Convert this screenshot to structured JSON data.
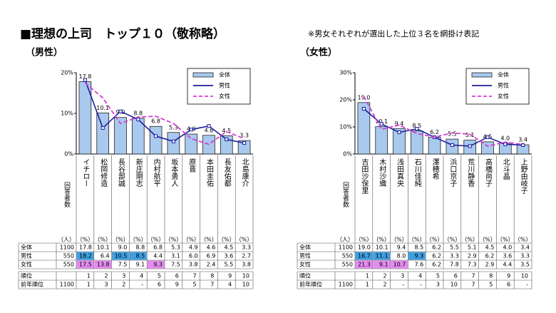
{
  "header": {
    "title": "■理想の上司　トップ１０（敬称略）",
    "note": "※男女それぞれが選出した上位３名を網掛け表記"
  },
  "chart_data": [
    {
      "type": "bar",
      "subtitle": "（男性）",
      "categories": [
        "イチロー",
        "松岡修造",
        "長谷部誠",
        "新庄剛志",
        "内村航平",
        "坂本勇人",
        "原晋",
        "本田圭佑",
        "長友佑都",
        "北島康介"
      ],
      "ylim": [
        0,
        20
      ],
      "yticks": [
        {
          "value": 0,
          "label": "0%"
        },
        {
          "value": 10,
          "label": "10%"
        },
        {
          "value": 20,
          "label": "20%"
        }
      ],
      "series": [
        {
          "name": "全体",
          "type": "bar",
          "color": "#a9c9ee",
          "values": [
            17.8,
            10.1,
            9,
            8.8,
            6.8,
            5.3,
            4.9,
            4.6,
            4.5,
            3.3
          ],
          "value_labels": [
            "17.8",
            "10.1",
            "9.0",
            "8.8",
            "6.8",
            "5.3",
            "4.9",
            "4.6",
            "4.5",
            "3.3"
          ]
        },
        {
          "name": "男性",
          "type": "line",
          "color": "#1c1c9c",
          "highlight": "#3f9fe0",
          "values": [
            18.2,
            6.4,
            10.5,
            8.5,
            4.4,
            3.1,
            6,
            6.9,
            3.6,
            2.7
          ],
          "value_labels": [
            "18.2",
            "6.4",
            "10.5",
            "8.5",
            "4.4",
            "3.1",
            "6.0",
            "6.9",
            "3.6",
            "2.7"
          ]
        },
        {
          "name": "女性",
          "type": "line",
          "dashed": true,
          "color": "#d63bd6",
          "highlight": "#e58cf0",
          "values": [
            17.5,
            13.8,
            7.5,
            9.1,
            9.3,
            7.5,
            3.8,
            2.4,
            5.5,
            3.8
          ],
          "value_labels": [
            "17.5",
            "13.8",
            "7.5",
            "9.1",
            "9.3",
            "7.5",
            "3.8",
            "2.4",
            "5.5",
            "3.8"
          ]
        }
      ],
      "table": {
        "respondents_label": "回答者数",
        "count_unit": "（人）",
        "value_unit": "（%）",
        "counts": [
          1100,
          550,
          550
        ],
        "highlight_top": 3,
        "rank_label": "順位",
        "ranks": [
          1,
          2,
          3,
          4,
          5,
          6,
          7,
          8,
          9,
          10
        ],
        "prev_rank_label": "前年順位",
        "prev_rank_count": 1100,
        "prev_ranks": [
          1,
          3,
          2,
          "-",
          6,
          9,
          5,
          7,
          4,
          10
        ]
      }
    },
    {
      "type": "bar",
      "subtitle": "（女性）",
      "categories": [
        "吉田沙保里",
        "木村沙織",
        "浅田真央",
        "石川佳純",
        "澤穂希",
        "浜口京子",
        "荒川静香",
        "高橋尚子",
        "北斗晶",
        "上野由岐子"
      ],
      "ylim": [
        0,
        30
      ],
      "yticks": [
        {
          "value": 0,
          "label": "0%"
        },
        {
          "value": 10,
          "label": "10%"
        },
        {
          "value": 20,
          "label": "20%"
        },
        {
          "value": 30,
          "label": "30%"
        }
      ],
      "series": [
        {
          "name": "全体",
          "type": "bar",
          "color": "#a9c9ee",
          "values": [
            19,
            10.1,
            9.4,
            8.5,
            6.2,
            5.5,
            5.1,
            4.5,
            4,
            3.4
          ],
          "value_labels": [
            "19.0",
            "10.1",
            "9.4",
            "8.5",
            "6.2",
            "5.5",
            "5.1",
            "4.5",
            "4.0",
            "3.4"
          ]
        },
        {
          "name": "男性",
          "type": "line",
          "color": "#1c1c9c",
          "highlight": "#3f9fe0",
          "values": [
            16.7,
            11.1,
            8,
            9.3,
            6.2,
            3.3,
            2.9,
            6.2,
            3.6,
            3.3
          ],
          "value_labels": [
            "16.7",
            "11.1",
            "8.0",
            "9.3",
            "6.2",
            "3.3",
            "2.9",
            "6.2",
            "3.6",
            "3.3"
          ]
        },
        {
          "name": "女性",
          "type": "line",
          "dashed": true,
          "color": "#d63bd6",
          "highlight": "#e58cf0",
          "values": [
            21.3,
            9.1,
            10.7,
            7.6,
            6.2,
            7.8,
            7.3,
            2.9,
            4.4,
            3.5
          ],
          "value_labels": [
            "21.3",
            "9.1",
            "10.7",
            "7.6",
            "6.2",
            "7.8",
            "7.3",
            "2.9",
            "4.4",
            "3.5"
          ]
        }
      ],
      "table": {
        "respondents_label": "回答者数",
        "count_unit": "（人）",
        "value_unit": "（%）",
        "counts": [
          1100,
          550,
          550
        ],
        "highlight_top": 3,
        "rank_label": "順位",
        "ranks": [
          1,
          2,
          3,
          4,
          5,
          6,
          7,
          8,
          9,
          10
        ],
        "prev_rank_label": "前年順位",
        "prev_rank_count": 1100,
        "prev_ranks": [
          1,
          2,
          "-",
          "-",
          3,
          10,
          7,
          5,
          6,
          "-"
        ]
      }
    }
  ]
}
